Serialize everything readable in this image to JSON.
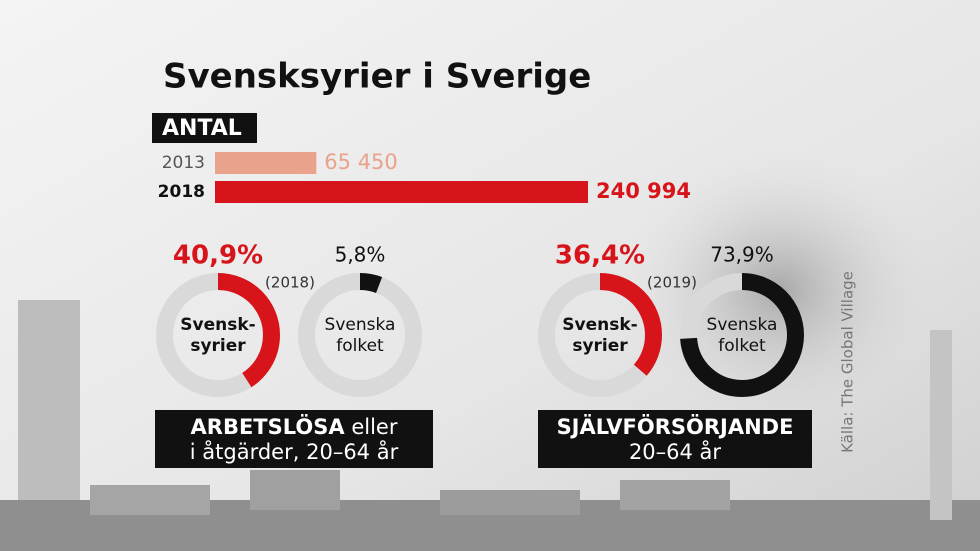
{
  "title": "Svensksyrier i Sverige",
  "source": "Källa: The Global Village",
  "chart_data": [
    {
      "type": "bar",
      "label": "ANTAL",
      "categories": [
        "2013",
        "2018"
      ],
      "values": [
        65450,
        240994
      ],
      "value_labels": [
        "65 450",
        "240 994"
      ],
      "colors": [
        "#e9a28c",
        "#d7141a"
      ]
    },
    {
      "type": "donut",
      "year": "(2018)",
      "caption_bold": "ARBETSLÖSA",
      "caption_rest": "eller",
      "caption_line2": "i åtgärder, 20–64 år",
      "series": [
        {
          "name_lines": [
            "Svensk-",
            "syrier"
          ],
          "value": 40.9,
          "value_label": "40,9%",
          "color": "#d7141a"
        },
        {
          "name_lines": [
            "Svenska",
            "folket"
          ],
          "value": 5.8,
          "value_label": "5,8%",
          "color": "#111111"
        }
      ]
    },
    {
      "type": "donut",
      "year": "(2019)",
      "caption_bold": "SJÄLVFÖRSÖRJANDE",
      "caption_line2": "20–64 år",
      "series": [
        {
          "name_lines": [
            "Svensk-",
            "syrier"
          ],
          "value": 36.4,
          "value_label": "36,4%",
          "color": "#d7141a"
        },
        {
          "name_lines": [
            "Svenska",
            "folket"
          ],
          "value": 73.9,
          "value_label": "73,9%",
          "color": "#111111"
        }
      ]
    }
  ]
}
